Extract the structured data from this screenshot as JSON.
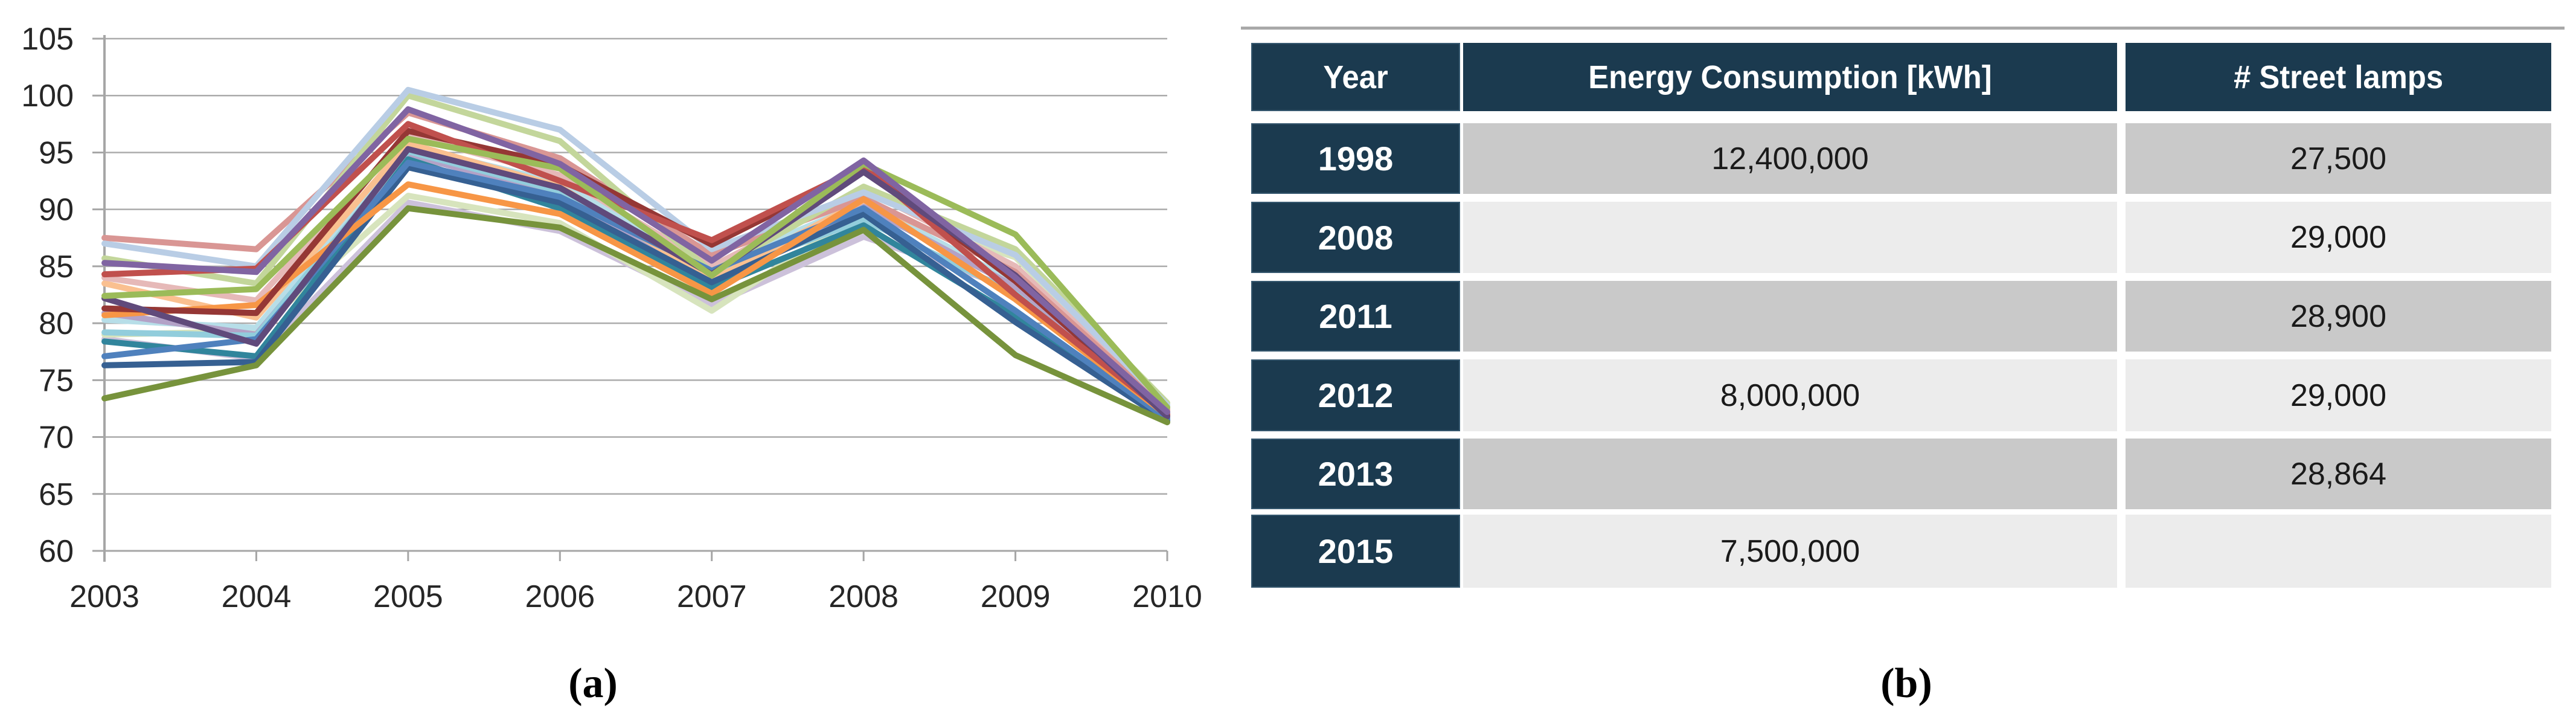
{
  "captions": {
    "a": "(a)",
    "b": "(b)"
  },
  "chart_data": [
    {
      "type": "line",
      "title": "",
      "xlabel": "",
      "ylabel": "",
      "x": [
        2003,
        2004,
        2005,
        2006,
        2007,
        2008,
        2009,
        2010
      ],
      "yticks": [
        60,
        65,
        70,
        75,
        80,
        85,
        90,
        95,
        100,
        105
      ],
      "ylim": [
        60,
        105
      ],
      "grid": true,
      "legend": "none",
      "style": {
        "axis_color": "#A6A6A6",
        "grid_color": "#ABABAB",
        "label_color": "#262626"
      },
      "series": [
        {
          "name": "lavender",
          "color": "#CCC1DA",
          "values": [
            78.6,
            76.9,
            90.6,
            88.1,
            81.6,
            87.6,
            83.0,
            72.0
          ]
        },
        {
          "name": "pale-green",
          "color": "#D7E4BD",
          "values": [
            79.0,
            79.3,
            91.2,
            88.8,
            81.1,
            89.9,
            85.8,
            72.7
          ]
        },
        {
          "name": "pale-teal",
          "color": "#B7DEE8",
          "values": [
            80.3,
            79.6,
            95.6,
            92.3,
            84.9,
            90.6,
            83.6,
            71.7
          ]
        },
        {
          "name": "light-purple",
          "color": "#B3A2C7",
          "values": [
            80.9,
            79.0,
            94.8,
            91.3,
            83.3,
            90.3,
            83.2,
            72.1
          ]
        },
        {
          "name": "light-teal",
          "color": "#92CDDC",
          "values": [
            79.2,
            78.9,
            95.1,
            91.6,
            84.1,
            89.1,
            82.6,
            71.7
          ]
        },
        {
          "name": "light-orange",
          "color": "#FAC090",
          "values": [
            83.5,
            80.5,
            95.8,
            92.0,
            83.8,
            90.8,
            84.8,
            72.3
          ]
        },
        {
          "name": "pale-pink",
          "color": "#E6B9B8",
          "values": [
            84.0,
            82.0,
            96.5,
            93.0,
            85.0,
            91.8,
            85.0,
            72.5
          ]
        },
        {
          "name": "salmon",
          "color": "#D99694",
          "values": [
            87.5,
            86.5,
            98.5,
            94.5,
            86.0,
            91.0,
            84.5,
            72.4
          ]
        },
        {
          "name": "light-green",
          "color": "#C3D69B",
          "values": [
            85.7,
            83.5,
            100.0,
            96.0,
            84.5,
            92.0,
            86.5,
            73.0
          ]
        },
        {
          "name": "pale-blue",
          "color": "#B9CDE5",
          "values": [
            87.0,
            85.0,
            100.5,
            97.0,
            86.5,
            91.5,
            86.0,
            72.8
          ]
        },
        {
          "name": "teal",
          "color": "#31859C",
          "values": [
            78.4,
            77.1,
            94.4,
            90.1,
            83.1,
            88.6,
            80.6,
            71.5
          ]
        },
        {
          "name": "dark-blue",
          "color": "#366092",
          "values": [
            76.3,
            76.6,
            93.7,
            90.6,
            83.6,
            89.6,
            80.1,
            71.4
          ]
        },
        {
          "name": "steel-blue",
          "color": "#4F81BD",
          "values": [
            77.1,
            78.6,
            94.1,
            91.1,
            84.6,
            90.1,
            81.1,
            71.6
          ]
        },
        {
          "name": "orange",
          "color": "#F79646",
          "values": [
            80.7,
            81.6,
            92.2,
            89.6,
            82.6,
            90.9,
            82.1,
            71.9
          ]
        },
        {
          "name": "dark-red",
          "color": "#953735",
          "values": [
            81.3,
            80.9,
            96.9,
            93.9,
            86.9,
            93.6,
            83.7,
            71.9
          ]
        },
        {
          "name": "red",
          "color": "#C0504D",
          "values": [
            84.3,
            84.8,
            97.5,
            92.5,
            87.3,
            93.8,
            82.5,
            72.0
          ]
        },
        {
          "name": "violet",
          "color": "#604A7B",
          "values": [
            82.2,
            78.2,
            95.3,
            91.9,
            84.3,
            93.3,
            84.2,
            71.8
          ]
        },
        {
          "name": "green",
          "color": "#9BBB59",
          "values": [
            82.4,
            83.0,
            96.2,
            93.6,
            84.2,
            94.0,
            87.8,
            72.6
          ]
        },
        {
          "name": "purple",
          "color": "#8064A2",
          "values": [
            85.3,
            84.5,
            98.8,
            94.0,
            85.5,
            94.3,
            84.0,
            72.2
          ]
        },
        {
          "name": "olive",
          "color": "#77933C",
          "values": [
            73.4,
            76.3,
            90.1,
            88.4,
            82.1,
            88.2,
            77.2,
            71.3
          ]
        }
      ]
    },
    {
      "type": "table",
      "columns": [
        "Year",
        "Energy Consumption [kWh]",
        "# Street lamps"
      ],
      "rows": [
        [
          "1998",
          "12,400,000",
          "27,500"
        ],
        [
          "2008",
          "",
          "29,000"
        ],
        [
          "2011",
          "",
          "28,900"
        ],
        [
          "2012",
          "8,000,000",
          "29,000"
        ],
        [
          "2013",
          "",
          "28,864"
        ],
        [
          "2015",
          "7,500,000",
          ""
        ]
      ],
      "colors": {
        "header_bg": "#1B3A4F",
        "header_text": "#FFFFFF",
        "row_dark": "#C9C9C9",
        "row_light": "#ECECEC",
        "top_line": "#A9A9A9"
      }
    }
  ]
}
